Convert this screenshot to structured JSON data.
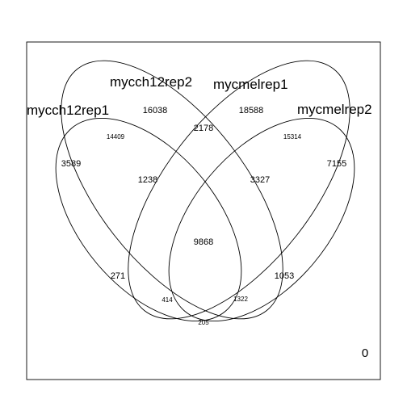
{
  "venn": {
    "sets": [
      {
        "name": "mycch12rep1"
      },
      {
        "name": "mycch12rep2"
      },
      {
        "name": "mycmelrep1"
      },
      {
        "name": "mycmelrep2"
      }
    ],
    "regions": {
      "mycch12rep1_only": "3589",
      "mycch12rep2_only": "16038",
      "mycmelrep1_only": "18588",
      "mycmelrep2_only": "7155",
      "mycch12rep1_mycch12rep2": "14409",
      "mycch12rep2_mycmelrep1": "2178",
      "mycmelrep1_mycmelrep2": "15314",
      "mycch12rep1_mycch12rep2_mycmelrep1": "1238",
      "mycch12rep2_mycmelrep1_mycmelrep2": "3327",
      "all_four": "9868",
      "mycch12rep1_mycmelrep2": "271",
      "mycch12rep2_mycmelrep2": "1053",
      "mycch12rep1_mycch12rep2_mycmelrep2": "414",
      "mycch12rep1_mycmelrep1_mycmelrep2": "1322",
      "mycch12rep1_mycmelrep1": "205"
    },
    "outside_count": "0"
  }
}
